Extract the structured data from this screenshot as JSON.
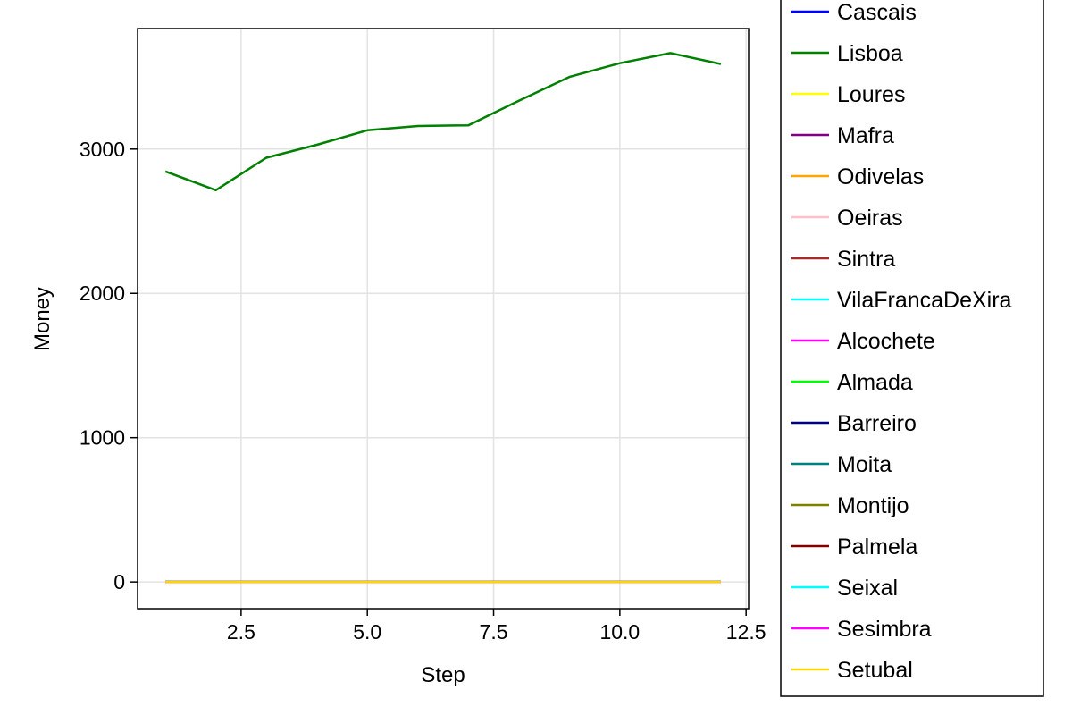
{
  "chart_data": {
    "type": "line",
    "title": "",
    "xlabel": "Step",
    "ylabel": "Money",
    "xlim": [
      0.45,
      12.55
    ],
    "ylim": [
      -185,
      3835
    ],
    "xticks": [
      2.5,
      5.0,
      7.5,
      10.0,
      12.5
    ],
    "xtick_labels": [
      "2.5",
      "5.0",
      "7.5",
      "10.0",
      "12.5"
    ],
    "yticks": [
      0,
      1000,
      2000,
      3000
    ],
    "ytick_labels": [
      "0",
      "1000",
      "2000",
      "3000"
    ],
    "grid": true,
    "legend_position": "right",
    "x": [
      1,
      2,
      3,
      4,
      5,
      6,
      7,
      8,
      9,
      10,
      11,
      12
    ],
    "series": [
      {
        "name": "Cascais",
        "color": "#0000ff",
        "values": [
          0,
          0,
          0,
          0,
          0,
          0,
          0,
          0,
          0,
          0,
          0,
          0
        ]
      },
      {
        "name": "Lisboa",
        "color": "#008000",
        "values": [
          2845,
          2715,
          2940,
          3030,
          3130,
          3160,
          3165,
          3335,
          3500,
          3595,
          3665,
          3590
        ]
      },
      {
        "name": "Loures",
        "color": "#ffff00",
        "values": [
          0,
          0,
          0,
          0,
          0,
          0,
          0,
          0,
          0,
          0,
          0,
          0
        ]
      },
      {
        "name": "Mafra",
        "color": "#800080",
        "values": [
          0,
          0,
          0,
          0,
          0,
          0,
          0,
          0,
          0,
          0,
          0,
          0
        ]
      },
      {
        "name": "Odivelas",
        "color": "#ffa500",
        "values": [
          0,
          0,
          0,
          0,
          0,
          0,
          0,
          0,
          0,
          0,
          0,
          0
        ]
      },
      {
        "name": "Oeiras",
        "color": "#ffc0cb",
        "values": [
          0,
          0,
          0,
          0,
          0,
          0,
          0,
          0,
          0,
          0,
          0,
          0
        ]
      },
      {
        "name": "Sintra",
        "color": "#a52a2a",
        "values": [
          0,
          0,
          0,
          0,
          0,
          0,
          0,
          0,
          0,
          0,
          0,
          0
        ]
      },
      {
        "name": "VilaFrancaDeXira",
        "color": "#00ffff",
        "values": [
          0,
          0,
          0,
          0,
          0,
          0,
          0,
          0,
          0,
          0,
          0,
          0
        ]
      },
      {
        "name": "Alcochete",
        "color": "#ff00ff",
        "values": [
          0,
          0,
          0,
          0,
          0,
          0,
          0,
          0,
          0,
          0,
          0,
          0
        ]
      },
      {
        "name": "Almada",
        "color": "#00ff00",
        "values": [
          0,
          0,
          0,
          0,
          0,
          0,
          0,
          0,
          0,
          0,
          0,
          0
        ]
      },
      {
        "name": "Barreiro",
        "color": "#000080",
        "values": [
          0,
          0,
          0,
          0,
          0,
          0,
          0,
          0,
          0,
          0,
          0,
          0
        ]
      },
      {
        "name": "Moita",
        "color": "#008080",
        "values": [
          0,
          0,
          0,
          0,
          0,
          0,
          0,
          0,
          0,
          0,
          0,
          0
        ]
      },
      {
        "name": "Montijo",
        "color": "#808000",
        "values": [
          0,
          0,
          0,
          0,
          0,
          0,
          0,
          0,
          0,
          0,
          0,
          0
        ]
      },
      {
        "name": "Palmela",
        "color": "#800000",
        "values": [
          0,
          0,
          0,
          0,
          0,
          0,
          0,
          0,
          0,
          0,
          0,
          0
        ]
      },
      {
        "name": "Seixal",
        "color": "#00ffff",
        "values": [
          0,
          0,
          0,
          0,
          0,
          0,
          0,
          0,
          0,
          0,
          0,
          0
        ]
      },
      {
        "name": "Sesimbra",
        "color": "#ff00ff",
        "values": [
          0,
          0,
          0,
          0,
          0,
          0,
          0,
          0,
          0,
          0,
          0,
          0
        ]
      },
      {
        "name": "Setubal",
        "color": "#ffd700",
        "values": [
          0,
          0,
          0,
          0,
          0,
          0,
          0,
          0,
          0,
          0,
          0,
          0
        ]
      }
    ]
  }
}
